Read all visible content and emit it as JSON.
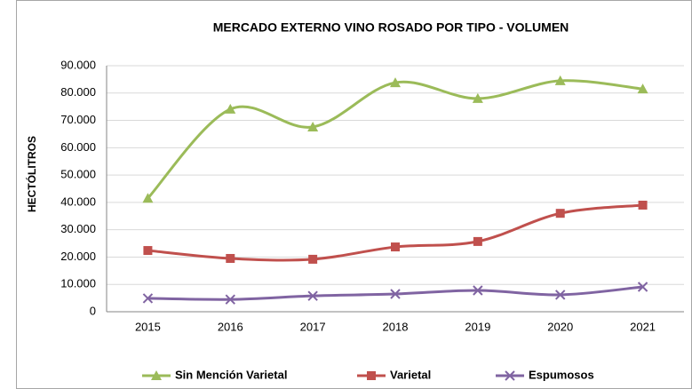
{
  "chart_data": {
    "type": "line",
    "title": "MERCADO EXTERNO VINO ROSADO POR TIPO - VOLUMEN",
    "y_label": "HECTÓLITROS",
    "categories": [
      "2015",
      "2016",
      "2017",
      "2018",
      "2019",
      "2020",
      "2021"
    ],
    "series": [
      {
        "name": "Sin Mención Varietal",
        "color": "#9bbb59",
        "marker": "triangle",
        "values": [
          41500,
          74100,
          67600,
          83800,
          78000,
          84500,
          81500
        ]
      },
      {
        "name": "Varietal",
        "color": "#c0504d",
        "marker": "square",
        "values": [
          22400,
          19500,
          19200,
          23700,
          25700,
          36000,
          39000
        ]
      },
      {
        "name": "Espumosos",
        "color": "#8064a2",
        "marker": "x",
        "values": [
          4900,
          4500,
          5800,
          6500,
          7800,
          6200,
          9100
        ]
      }
    ],
    "ylim": [
      0,
      90000
    ],
    "yticks": [
      0,
      {
        "value": 10000,
        "label": "10.000"
      },
      {
        "value": 20000,
        "label": "20.000"
      },
      {
        "value": 30000,
        "label": "30.000"
      },
      {
        "value": 40000,
        "label": "40.000"
      },
      {
        "value": 50000,
        "label": "50.000"
      },
      {
        "value": 60000,
        "label": "60.000"
      },
      {
        "value": 70000,
        "label": "70.000"
      },
      {
        "value": 80000,
        "label": "80.000"
      },
      {
        "value": 90000,
        "label": "90.000"
      }
    ],
    "grid": true,
    "legend": "bottom",
    "smooth": true
  }
}
